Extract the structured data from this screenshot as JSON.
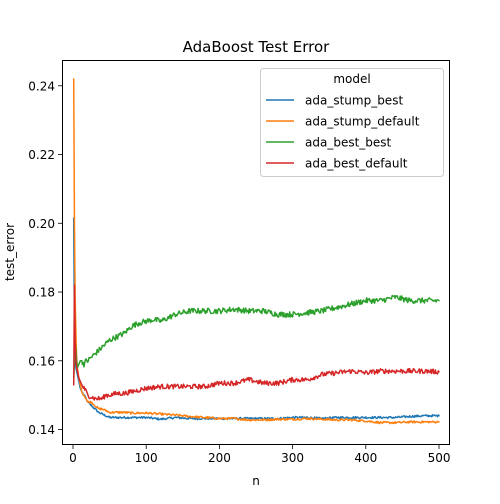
{
  "chart_data": {
    "type": "line",
    "title": "AdaBoost Test Error",
    "xlabel": "n",
    "ylabel": "test_error",
    "xlim": [
      -15,
      515
    ],
    "ylim": [
      0.1355,
      0.2475
    ],
    "x_ticks": [
      0,
      100,
      200,
      300,
      400,
      500
    ],
    "y_ticks": [
      0.14,
      0.16,
      0.18,
      0.2,
      0.22,
      0.24
    ],
    "x_tick_labels": [
      "0",
      "100",
      "200",
      "300",
      "400",
      "500"
    ],
    "y_tick_labels": [
      "0.14",
      "0.16",
      "0.18",
      "0.20",
      "0.22",
      "0.24"
    ],
    "grid": false,
    "legend": {
      "title": "model",
      "placement": "top-right"
    },
    "series": [
      {
        "name": "ada_stump_best",
        "color": "#1f77b4",
        "points": [
          [
            1,
            0.2015
          ],
          [
            2,
            0.1705
          ],
          [
            3,
            0.162
          ],
          [
            4,
            0.158
          ],
          [
            5,
            0.157
          ],
          [
            6,
            0.156
          ],
          [
            8,
            0.154
          ],
          [
            10,
            0.152
          ],
          [
            12,
            0.151
          ],
          [
            15,
            0.15
          ],
          [
            18,
            0.149
          ],
          [
            20,
            0.148
          ],
          [
            25,
            0.147
          ],
          [
            30,
            0.146
          ],
          [
            35,
            0.145
          ],
          [
            40,
            0.1445
          ],
          [
            45,
            0.144
          ],
          [
            50,
            0.1435
          ],
          [
            60,
            0.1435
          ],
          [
            70,
            0.1435
          ],
          [
            80,
            0.1435
          ],
          [
            90,
            0.1435
          ],
          [
            100,
            0.1435
          ],
          [
            120,
            0.143
          ],
          [
            140,
            0.1435
          ],
          [
            160,
            0.1432
          ],
          [
            180,
            0.1432
          ],
          [
            200,
            0.1432
          ],
          [
            220,
            0.1432
          ],
          [
            240,
            0.1432
          ],
          [
            260,
            0.1432
          ],
          [
            280,
            0.1432
          ],
          [
            300,
            0.1435
          ],
          [
            320,
            0.1435
          ],
          [
            340,
            0.1432
          ],
          [
            360,
            0.1435
          ],
          [
            380,
            0.1435
          ],
          [
            400,
            0.1435
          ],
          [
            420,
            0.1435
          ],
          [
            440,
            0.1435
          ],
          [
            460,
            0.1438
          ],
          [
            480,
            0.144
          ],
          [
            500,
            0.144
          ]
        ]
      },
      {
        "name": "ada_stump_default",
        "color": "#ff7f0e",
        "points": [
          [
            1,
            0.242
          ],
          [
            2,
            0.2
          ],
          [
            3,
            0.178
          ],
          [
            4,
            0.168
          ],
          [
            5,
            0.161
          ],
          [
            6,
            0.158
          ],
          [
            8,
            0.155
          ],
          [
            10,
            0.153
          ],
          [
            12,
            0.151
          ],
          [
            15,
            0.15
          ],
          [
            18,
            0.149
          ],
          [
            20,
            0.148
          ],
          [
            25,
            0.148
          ],
          [
            30,
            0.147
          ],
          [
            35,
            0.146
          ],
          [
            40,
            0.146
          ],
          [
            45,
            0.1455
          ],
          [
            50,
            0.145
          ],
          [
            60,
            0.145
          ],
          [
            70,
            0.145
          ],
          [
            80,
            0.1448
          ],
          [
            90,
            0.1448
          ],
          [
            100,
            0.1448
          ],
          [
            120,
            0.1445
          ],
          [
            140,
            0.1442
          ],
          [
            160,
            0.1438
          ],
          [
            180,
            0.1435
          ],
          [
            200,
            0.1432
          ],
          [
            220,
            0.1432
          ],
          [
            240,
            0.1428
          ],
          [
            260,
            0.1428
          ],
          [
            280,
            0.143
          ],
          [
            300,
            0.143
          ],
          [
            320,
            0.1432
          ],
          [
            340,
            0.143
          ],
          [
            360,
            0.1428
          ],
          [
            380,
            0.1428
          ],
          [
            400,
            0.1425
          ],
          [
            420,
            0.142
          ],
          [
            440,
            0.142
          ],
          [
            460,
            0.1422
          ],
          [
            480,
            0.1422
          ],
          [
            500,
            0.1422
          ]
        ]
      },
      {
        "name": "ada_best_best",
        "color": "#2ca02c",
        "points": [
          [
            1,
            0.154
          ],
          [
            2,
            0.16
          ],
          [
            3,
            0.165
          ],
          [
            4,
            0.163
          ],
          [
            5,
            0.16
          ],
          [
            6,
            0.158
          ],
          [
            8,
            0.159
          ],
          [
            10,
            0.16
          ],
          [
            12,
            0.16
          ],
          [
            15,
            0.159
          ],
          [
            18,
            0.16
          ],
          [
            20,
            0.16
          ],
          [
            25,
            0.161
          ],
          [
            30,
            0.162
          ],
          [
            35,
            0.163
          ],
          [
            40,
            0.164
          ],
          [
            45,
            0.165
          ],
          [
            50,
            0.166
          ],
          [
            60,
            0.167
          ],
          [
            70,
            0.168
          ],
          [
            80,
            0.17
          ],
          [
            90,
            0.171
          ],
          [
            100,
            0.1715
          ],
          [
            110,
            0.172
          ],
          [
            120,
            0.1715
          ],
          [
            140,
            0.1735
          ],
          [
            160,
            0.1745
          ],
          [
            180,
            0.1745
          ],
          [
            200,
            0.1745
          ],
          [
            220,
            0.175
          ],
          [
            240,
            0.1745
          ],
          [
            260,
            0.1745
          ],
          [
            280,
            0.1735
          ],
          [
            300,
            0.1735
          ],
          [
            320,
            0.174
          ],
          [
            340,
            0.1745
          ],
          [
            360,
            0.1755
          ],
          [
            380,
            0.1765
          ],
          [
            400,
            0.1775
          ],
          [
            420,
            0.1775
          ],
          [
            440,
            0.1785
          ],
          [
            460,
            0.1775
          ],
          [
            480,
            0.1775
          ],
          [
            500,
            0.1775
          ]
        ]
      },
      {
        "name": "ada_best_default",
        "color": "#d62728",
        "points": [
          [
            1,
            0.153
          ],
          [
            2,
            0.182
          ],
          [
            3,
            0.165
          ],
          [
            4,
            0.16
          ],
          [
            5,
            0.158
          ],
          [
            6,
            0.157
          ],
          [
            8,
            0.155
          ],
          [
            10,
            0.154
          ],
          [
            12,
            0.153
          ],
          [
            15,
            0.152
          ],
          [
            18,
            0.151
          ],
          [
            20,
            0.15
          ],
          [
            25,
            0.1495
          ],
          [
            30,
            0.149
          ],
          [
            35,
            0.149
          ],
          [
            40,
            0.149
          ],
          [
            45,
            0.15
          ],
          [
            50,
            0.15
          ],
          [
            60,
            0.1505
          ],
          [
            70,
            0.1505
          ],
          [
            80,
            0.151
          ],
          [
            90,
            0.1515
          ],
          [
            100,
            0.152
          ],
          [
            120,
            0.1525
          ],
          [
            140,
            0.1525
          ],
          [
            160,
            0.1525
          ],
          [
            180,
            0.1525
          ],
          [
            200,
            0.1535
          ],
          [
            220,
            0.1535
          ],
          [
            240,
            0.1545
          ],
          [
            260,
            0.1535
          ],
          [
            280,
            0.1535
          ],
          [
            300,
            0.1545
          ],
          [
            320,
            0.1545
          ],
          [
            340,
            0.156
          ],
          [
            360,
            0.1565
          ],
          [
            380,
            0.157
          ],
          [
            400,
            0.1565
          ],
          [
            420,
            0.157
          ],
          [
            440,
            0.157
          ],
          [
            460,
            0.157
          ],
          [
            480,
            0.157
          ],
          [
            500,
            0.1568
          ]
        ]
      }
    ]
  }
}
